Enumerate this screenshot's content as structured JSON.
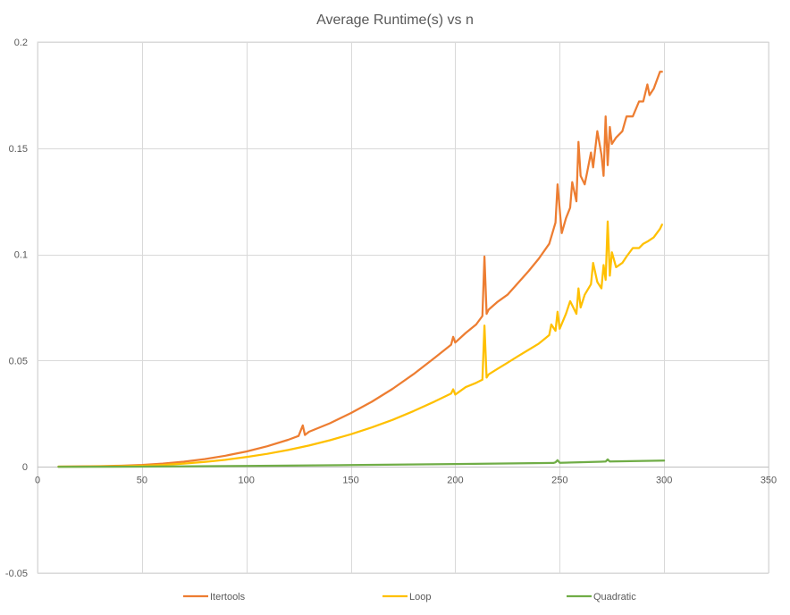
{
  "chart_data": {
    "type": "line",
    "title": "Average Runtime(s) vs n",
    "xlabel": "",
    "ylabel": "",
    "xlim": [
      0,
      350
    ],
    "ylim": [
      -0.05,
      0.2
    ],
    "x_ticks": [
      0,
      50,
      100,
      150,
      200,
      250,
      300,
      350
    ],
    "y_ticks": [
      -0.05,
      0,
      0.05,
      0.1,
      0.15,
      0.2
    ],
    "x_tick_labels": [
      "0",
      "50",
      "100",
      "150",
      "200",
      "250",
      "300",
      "350"
    ],
    "y_tick_labels": [
      "-0.05",
      "0",
      "0.05",
      "0.1",
      "0.15",
      "0.2"
    ],
    "grid": true,
    "legend": "bottom",
    "series": [
      {
        "name": "Itertools",
        "color": "#ED7D31",
        "x": [
          10,
          20,
          30,
          40,
          50,
          60,
          70,
          80,
          90,
          100,
          110,
          120,
          125,
          127,
          128,
          130,
          140,
          150,
          160,
          170,
          180,
          190,
          198,
          199,
          200,
          205,
          210,
          213,
          214,
          215,
          216,
          220,
          225,
          230,
          235,
          240,
          245,
          248,
          249,
          251,
          253,
          255,
          256,
          258,
          259,
          260,
          262,
          263,
          265,
          266,
          268,
          270,
          271,
          272,
          273,
          274,
          275,
          277,
          280,
          282,
          285,
          288,
          290,
          292,
          293,
          295,
          298,
          299
        ],
        "y": [
          0.0001,
          0.0002,
          0.0003,
          0.0005,
          0.0009,
          0.0015,
          0.0024,
          0.0036,
          0.0052,
          0.0072,
          0.0097,
          0.0127,
          0.0145,
          0.0195,
          0.015,
          0.0165,
          0.0205,
          0.0253,
          0.0306,
          0.0367,
          0.0436,
          0.0512,
          0.0575,
          0.0612,
          0.0585,
          0.063,
          0.067,
          0.071,
          0.099,
          0.072,
          0.074,
          0.0775,
          0.081,
          0.0865,
          0.092,
          0.098,
          0.105,
          0.115,
          0.133,
          0.11,
          0.117,
          0.122,
          0.134,
          0.125,
          0.153,
          0.137,
          0.133,
          0.138,
          0.148,
          0.141,
          0.158,
          0.147,
          0.137,
          0.165,
          0.142,
          0.16,
          0.152,
          0.155,
          0.158,
          0.165,
          0.165,
          0.172,
          0.172,
          0.18,
          0.175,
          0.178,
          0.186,
          0.186
        ]
      },
      {
        "name": "Loop",
        "color": "#FFC000",
        "x": [
          10,
          20,
          30,
          40,
          50,
          60,
          70,
          80,
          90,
          100,
          110,
          120,
          130,
          140,
          150,
          160,
          170,
          180,
          190,
          198,
          199,
          200,
          205,
          210,
          213,
          214,
          215,
          216,
          220,
          225,
          230,
          235,
          240,
          245,
          246,
          248,
          249,
          250,
          253,
          255,
          258,
          259,
          260,
          262,
          265,
          266,
          268,
          270,
          271,
          272,
          273,
          274,
          275,
          277,
          280,
          282,
          285,
          288,
          290,
          292,
          295,
          298,
          299
        ],
        "y": [
          0.0001,
          0.0001,
          0.0002,
          0.0003,
          0.0005,
          0.0009,
          0.0015,
          0.0023,
          0.0033,
          0.0046,
          0.0061,
          0.0079,
          0.01,
          0.0125,
          0.0153,
          0.0185,
          0.0221,
          0.0262,
          0.0307,
          0.0345,
          0.0365,
          0.034,
          0.0375,
          0.0395,
          0.041,
          0.0665,
          0.042,
          0.0435,
          0.046,
          0.049,
          0.052,
          0.055,
          0.058,
          0.062,
          0.067,
          0.064,
          0.073,
          0.065,
          0.072,
          0.078,
          0.072,
          0.084,
          0.075,
          0.081,
          0.086,
          0.096,
          0.087,
          0.084,
          0.095,
          0.088,
          0.1155,
          0.09,
          0.101,
          0.094,
          0.096,
          0.099,
          0.103,
          0.103,
          0.105,
          0.106,
          0.108,
          0.112,
          0.114
        ]
      },
      {
        "name": "Quadratic",
        "color": "#70AD47",
        "x": [
          10,
          50,
          100,
          150,
          200,
          247,
          248,
          249,
          250,
          270,
          272,
          273,
          274,
          300
        ],
        "y": [
          0.0,
          0.0001,
          0.0004,
          0.0008,
          0.0013,
          0.0018,
          0.0021,
          0.0031,
          0.0019,
          0.0024,
          0.0025,
          0.0035,
          0.0025,
          0.0029
        ]
      }
    ]
  }
}
